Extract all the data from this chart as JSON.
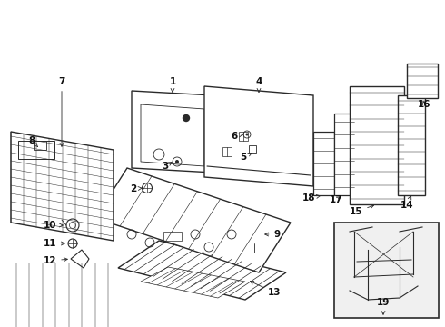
{
  "bg_color": "#ffffff",
  "lc": "#2a2a2a",
  "lw": 0.7,
  "figsize": [
    4.9,
    3.6
  ],
  "dpi": 100
}
